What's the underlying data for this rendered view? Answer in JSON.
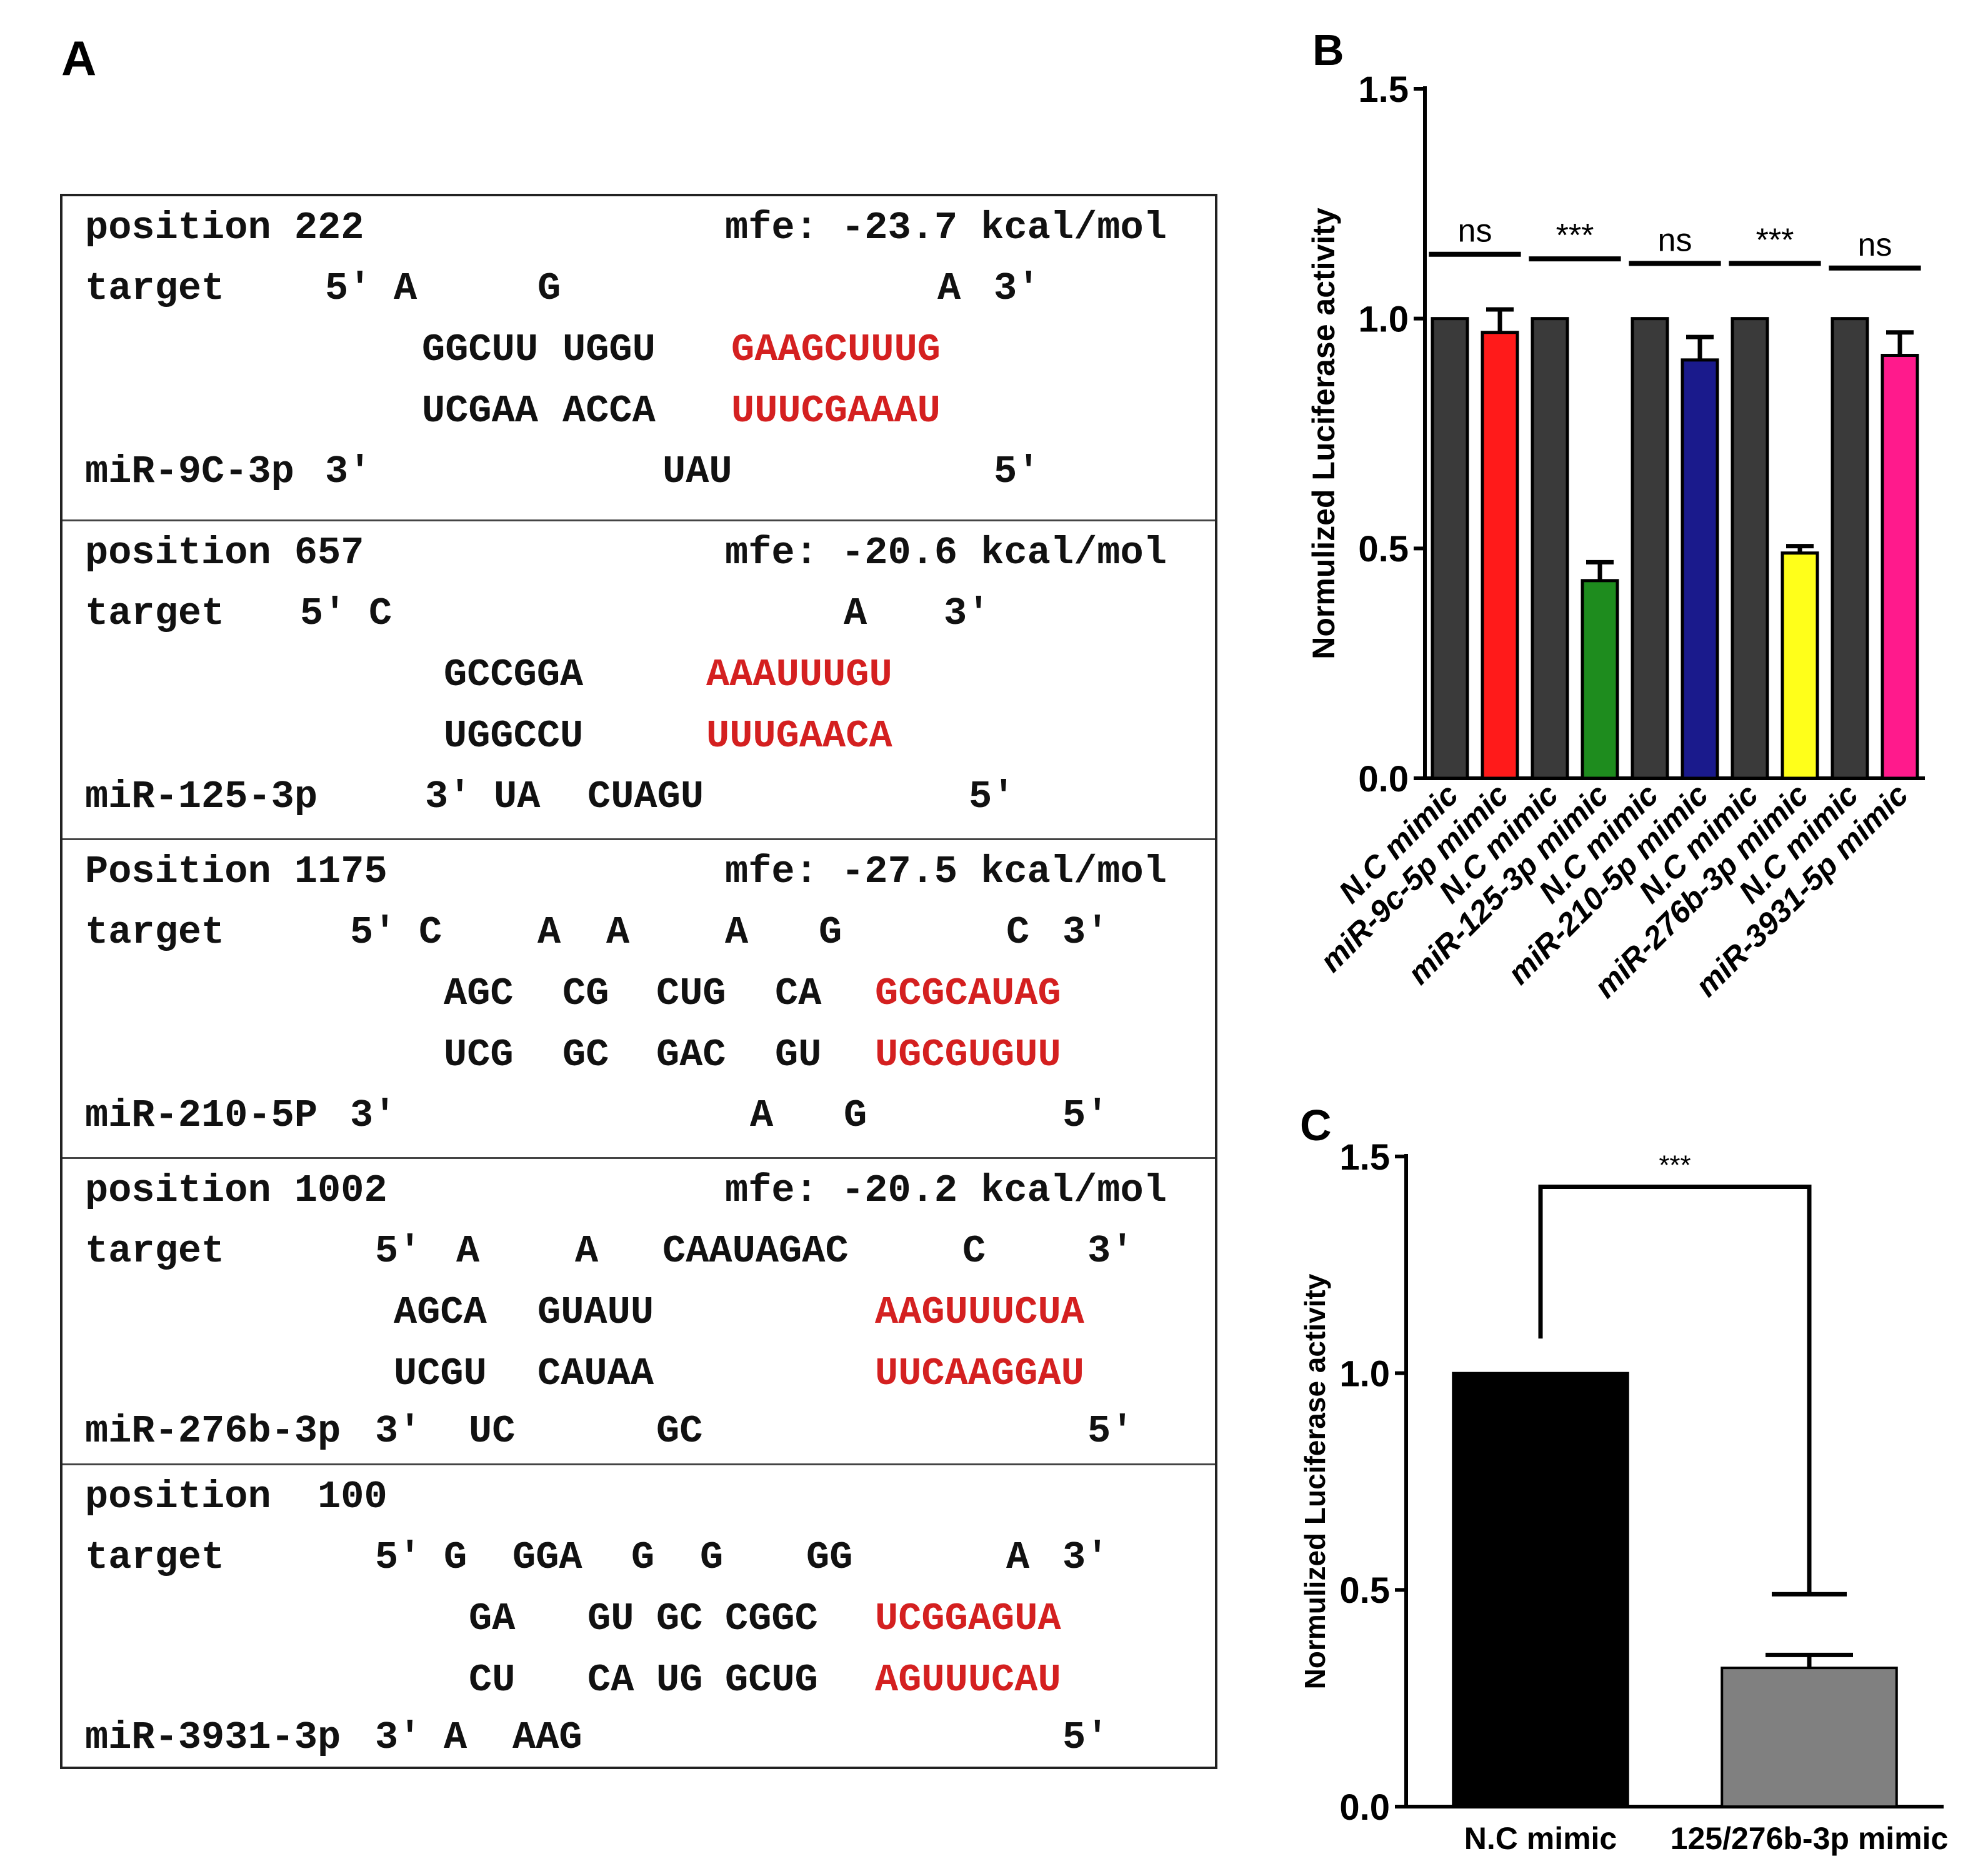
{
  "panelA": {
    "label": "A",
    "blocks": [
      {
        "position": "position 222",
        "mfe": "mfe: -23.7 kcal/mol",
        "target_prefix": "target",
        "target_five": "5'",
        "target_bulges": [
          "A",
          "G",
          "A"
        ],
        "target_three": "3'",
        "top_pairs": [
          "GGCUU",
          "UGGU"
        ],
        "top_seed": "GAAGCUUUG",
        "bottom_pairs": [
          "UCGAA",
          "ACCA"
        ],
        "bottom_seed": "UUUCGAAAU",
        "mirna_name": "miR-9C-3p",
        "mirna_three": "3'",
        "mirna_bulges": [
          "UAU"
        ],
        "mirna_five": "5'"
      },
      {
        "position": "position 657",
        "mfe": "mfe: -20.6 kcal/mol",
        "target_prefix": "target",
        "target_five": "5'",
        "target_bulges": [
          "C",
          "A"
        ],
        "target_three": "3'",
        "top_pairs": [
          "GCCGGA"
        ],
        "top_seed": "AAAUUUGU",
        "bottom_pairs": [
          "UGGCCU"
        ],
        "bottom_seed": "UUUGAACA",
        "mirna_name": "miR-125-3p",
        "mirna_three": "3'",
        "mirna_bulges": [
          "UA",
          "CUAGU"
        ],
        "mirna_five": "5'"
      },
      {
        "position": "Position 1175",
        "mfe": "mfe: -27.5 kcal/mol",
        "target_prefix": "target",
        "target_five": "5'",
        "target_bulges": [
          "C",
          "A",
          "A",
          "A",
          "G",
          "C"
        ],
        "target_three": "3'",
        "top_pairs": [
          "AGC",
          "CG",
          "CUG",
          "CA"
        ],
        "top_seed": "GCGCAUAG",
        "bottom_pairs": [
          "UCG",
          "GC",
          "GAC",
          "GU"
        ],
        "bottom_seed": "UGCGUGUU",
        "mirna_name": "miR-210-5P",
        "mirna_three": "3'",
        "mirna_bulges": [
          "A",
          "G"
        ],
        "mirna_five": "5'"
      },
      {
        "position": "position 1002",
        "mfe": "mfe: -20.2 kcal/mol",
        "target_prefix": "target",
        "target_five": "5'",
        "target_bulges": [
          "A",
          "A",
          "CAAUAGAC",
          "C"
        ],
        "target_three": "3'",
        "top_pairs": [
          "AGCA",
          "GUAUU"
        ],
        "top_seed": "AAGUUUCUA",
        "bottom_pairs": [
          "UCGU",
          "CAUAA"
        ],
        "bottom_seed": "UUCAAGGAU",
        "mirna_name": "miR-276b-3p",
        "mirna_three": "3'",
        "mirna_bulges": [
          "UC",
          "GC"
        ],
        "mirna_five": "5'"
      },
      {
        "position": "position  100",
        "mfe": "",
        "target_prefix": "target",
        "target_five": "5'",
        "target_bulges": [
          "G",
          "GGA",
          "G",
          "G",
          "GG",
          "A"
        ],
        "target_three": "3'",
        "top_pairs": [
          "GA",
          "GU",
          "GC",
          "CGGC"
        ],
        "top_seed": "UCGGAGUA",
        "bottom_pairs": [
          "CU",
          "CA",
          "UG",
          "GCUG"
        ],
        "bottom_seed": "AGUUUCAU",
        "mirna_name": "miR-3931-3p",
        "mirna_three": "3'",
        "mirna_bulges": [
          "A",
          "AAG"
        ],
        "mirna_five": "5'"
      }
    ]
  },
  "chart_data": [
    {
      "panel": "B",
      "type": "bar",
      "title": "",
      "xlabel": "",
      "ylabel": "Normulized  Luciferase activity",
      "ylim": [
        0.0,
        1.5
      ],
      "yticks": [
        "0.0",
        "0.5",
        "1.0",
        "1.5"
      ],
      "categories": [
        "N.C mimic",
        "miR-9c-5p mimic",
        "N.C mimic",
        "miR-125-3p mimic",
        "N.C mimic",
        "miR-210-5p mimic",
        "N.C mimic",
        "miR-276b-3p mimic",
        "N.C mimic",
        "miR-3931-5p mimic"
      ],
      "values": [
        1.0,
        0.97,
        1.0,
        0.43,
        1.0,
        0.91,
        1.0,
        0.49,
        1.0,
        0.92
      ],
      "errors": [
        0.0,
        0.05,
        0.0,
        0.04,
        0.0,
        0.05,
        0.0,
        0.015,
        0.0,
        0.05
      ],
      "colors": [
        "#3a3a3a",
        "#ff1a1a",
        "#3a3a3a",
        "#1e8c1e",
        "#3a3a3a",
        "#1a1a8c",
        "#3a3a3a",
        "#ffff1a",
        "#3a3a3a",
        "#ff1a8c"
      ],
      "significance": [
        {
          "label": "ns",
          "pair": [
            0,
            1
          ],
          "y": 1.14
        },
        {
          "label": "***",
          "pair": [
            2,
            3
          ],
          "y": 1.13
        },
        {
          "label": "ns",
          "pair": [
            4,
            5
          ],
          "y": 1.12
        },
        {
          "label": "***",
          "pair": [
            6,
            7
          ],
          "y": 1.12
        },
        {
          "label": "ns",
          "pair": [
            8,
            9
          ],
          "y": 1.11
        }
      ],
      "grid": false
    },
    {
      "panel": "C",
      "type": "bar",
      "title": "",
      "xlabel": "",
      "ylabel": "Normulized Luciferase activity",
      "ylim": [
        0.0,
        1.5
      ],
      "yticks": [
        "0.0",
        "0.5",
        "1.0",
        "1.5"
      ],
      "categories": [
        "N.C mimic",
        "125/276b-3p mimic"
      ],
      "values": [
        1.0,
        0.32
      ],
      "errors": [
        0.0,
        0.03
      ],
      "colors": [
        "#000000",
        "#808080"
      ],
      "significance": [
        {
          "label": "***",
          "pair": [
            0,
            1
          ],
          "y": 1.43
        }
      ],
      "grid": false
    }
  ]
}
